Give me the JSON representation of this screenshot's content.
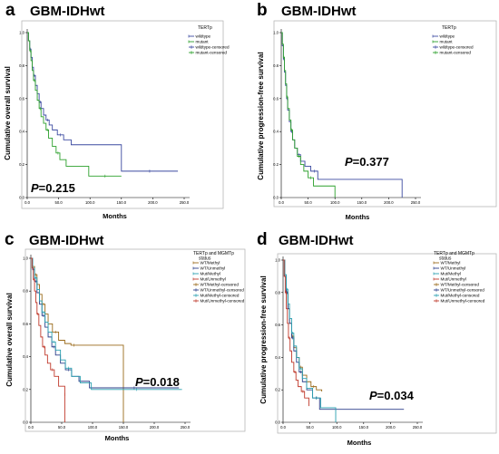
{
  "chart_data": [
    {
      "type": "line",
      "panel": "a",
      "title": "GBM-IDHwt",
      "xlabel": "Months",
      "ylabel": "Cumulative overall survival",
      "xlim": [
        0,
        250
      ],
      "ylim": [
        0,
        1.0
      ],
      "xticks": [
        "0.0",
        "50.0",
        "100.0",
        "150.0",
        "200.0",
        "250.0"
      ],
      "yticks": [
        "0.0",
        "0.2",
        "0.4",
        "0.6",
        "0.8",
        "1.0"
      ],
      "legend_title": "TERTp",
      "legend": [
        "wildtype",
        "mutant",
        "wildtype-censored",
        "mutant-censored"
      ],
      "annotation_p": "P",
      "annotation_value": "=0.215",
      "series": [
        {
          "name": "wildtype",
          "color": "#3b4aa0",
          "x": [
            0,
            2,
            4,
            6,
            8,
            10,
            13,
            16,
            19,
            22,
            26,
            30,
            35,
            40,
            48,
            58,
            70,
            150,
            240
          ],
          "y": [
            1.0,
            0.95,
            0.9,
            0.85,
            0.79,
            0.74,
            0.68,
            0.63,
            0.58,
            0.54,
            0.5,
            0.47,
            0.44,
            0.41,
            0.38,
            0.35,
            0.32,
            0.16,
            0.16
          ]
        },
        {
          "name": "mutant",
          "color": "#2ca02c",
          "x": [
            0,
            2,
            4,
            6,
            8,
            10,
            13,
            16,
            19,
            22,
            26,
            30,
            34,
            40,
            46,
            52,
            62,
            98,
            150
          ],
          "y": [
            1.0,
            0.95,
            0.89,
            0.83,
            0.77,
            0.71,
            0.65,
            0.59,
            0.54,
            0.49,
            0.45,
            0.41,
            0.36,
            0.31,
            0.27,
            0.23,
            0.19,
            0.13,
            0.13
          ]
        }
      ]
    },
    {
      "type": "line",
      "panel": "b",
      "title": "GBM-IDHwt",
      "xlabel": "Months",
      "ylabel": "Cumulative progression-free survival",
      "xlim": [
        0,
        250
      ],
      "ylim": [
        0,
        1.0
      ],
      "xticks": [
        "0.0",
        "50.0",
        "100.0",
        "150.0",
        "200.0",
        "250.0"
      ],
      "yticks": [
        "0.0",
        "0.2",
        "0.4",
        "0.6",
        "0.8",
        "1.0"
      ],
      "legend_title": "TERTp",
      "legend": [
        "wildtype",
        "mutant",
        "wildtype-censored",
        "mutant-censored"
      ],
      "annotation_p": "P",
      "annotation_value": "=0.377",
      "series": [
        {
          "name": "wildtype",
          "color": "#3b4aa0",
          "x": [
            0,
            2,
            4,
            6,
            8,
            10,
            12,
            15,
            18,
            21,
            25,
            30,
            36,
            44,
            55,
            68,
            225
          ],
          "y": [
            1.0,
            0.92,
            0.84,
            0.76,
            0.68,
            0.6,
            0.53,
            0.46,
            0.4,
            0.35,
            0.3,
            0.26,
            0.22,
            0.19,
            0.16,
            0.11,
            0.0
          ]
        },
        {
          "name": "mutant",
          "color": "#2ca02c",
          "x": [
            0,
            2,
            4,
            6,
            8,
            10,
            12,
            15,
            18,
            21,
            25,
            30,
            36,
            42,
            50,
            60,
            100
          ],
          "y": [
            1.0,
            0.93,
            0.85,
            0.77,
            0.69,
            0.61,
            0.54,
            0.47,
            0.41,
            0.35,
            0.3,
            0.25,
            0.2,
            0.16,
            0.12,
            0.07,
            0.0
          ]
        }
      ]
    },
    {
      "type": "line",
      "panel": "c",
      "title": "GBM-IDHwt",
      "xlabel": "Months",
      "ylabel": "Cumulative overall survival",
      "xlim": [
        0,
        250
      ],
      "ylim": [
        0,
        1.0
      ],
      "xticks": [
        "0.0",
        "50.0",
        "100.0",
        "150.0",
        "200.0",
        "250.0"
      ],
      "yticks": [
        "0.0",
        "0.2",
        "0.4",
        "0.6",
        "0.8",
        "1.0"
      ],
      "legend_title": "TERTp and MGMTp status",
      "legend": [
        "WT/Methyl",
        "WT/Unmethyl",
        "Mut/Methyl",
        "Mut/Unmethyl",
        "WT/Methyl-censored",
        "WT/Unmethyl-censored",
        "Mut/Methyl-censored",
        "Mut/Unmethyl-censored"
      ],
      "annotation_p": "P",
      "annotation_value": "=0.018",
      "series": [
        {
          "name": "WT/Methyl",
          "color": "#9a6a1a",
          "x": [
            0,
            3,
            6,
            10,
            14,
            18,
            23,
            28,
            35,
            45,
            55,
            65,
            75,
            150,
            150
          ],
          "y": [
            1.0,
            0.95,
            0.9,
            0.84,
            0.78,
            0.72,
            0.66,
            0.6,
            0.55,
            0.5,
            0.48,
            0.47,
            0.47,
            0.47,
            0.0
          ]
        },
        {
          "name": "WT/Unmethyl",
          "color": "#2b3f8a",
          "x": [
            0,
            3,
            6,
            10,
            14,
            18,
            23,
            28,
            34,
            40,
            48,
            56,
            66,
            78,
            95,
            240
          ],
          "y": [
            1.0,
            0.93,
            0.86,
            0.79,
            0.72,
            0.65,
            0.58,
            0.52,
            0.46,
            0.41,
            0.36,
            0.32,
            0.28,
            0.25,
            0.21,
            0.21
          ]
        },
        {
          "name": "Mut/Methyl",
          "color": "#2aa0b0",
          "x": [
            0,
            3,
            6,
            10,
            14,
            18,
            23,
            28,
            34,
            40,
            48,
            56,
            66,
            80,
            98,
            245
          ],
          "y": [
            1.0,
            0.94,
            0.88,
            0.81,
            0.74,
            0.67,
            0.61,
            0.55,
            0.49,
            0.44,
            0.38,
            0.33,
            0.28,
            0.24,
            0.2,
            0.2
          ]
        },
        {
          "name": "Mut/Unmethyl",
          "color": "#c0392b",
          "x": [
            0,
            2,
            4,
            6,
            8,
            10,
            13,
            16,
            19,
            23,
            27,
            32,
            38,
            45,
            55,
            55
          ],
          "y": [
            1.0,
            0.94,
            0.87,
            0.8,
            0.73,
            0.66,
            0.59,
            0.52,
            0.46,
            0.41,
            0.36,
            0.32,
            0.28,
            0.22,
            0.17,
            0.0
          ]
        }
      ]
    },
    {
      "type": "line",
      "panel": "d",
      "title": "GBM-IDHwt",
      "xlabel": "Months",
      "ylabel": "Cumulative progression-free survival",
      "xlim": [
        0,
        250
      ],
      "ylim": [
        0,
        1.0
      ],
      "xticks": [
        "0.0",
        "50.0",
        "100.0",
        "150.0",
        "200.0",
        "250.0"
      ],
      "yticks": [
        "0.0",
        "0.2",
        "0.4",
        "0.6",
        "0.8",
        "1.0"
      ],
      "legend_title": "TERTp and MGMTp status",
      "legend": [
        "WT/Methyl",
        "WT/Unmethyl",
        "Mut/Methyl",
        "Mut/Unmethyl",
        "WT/Methyl-censored",
        "WT/Unmethyl-censored",
        "Mut/Methyl-censored",
        "Mut/Unmethyl-censored"
      ],
      "annotation_p": "P",
      "annotation_value": "=0.034",
      "series": [
        {
          "name": "WT/Methyl",
          "color": "#9a6a1a",
          "x": [
            0,
            3,
            6,
            9,
            12,
            16,
            20,
            25,
            30,
            36,
            44,
            52,
            62,
            72
          ],
          "y": [
            1.0,
            0.9,
            0.8,
            0.7,
            0.61,
            0.53,
            0.46,
            0.4,
            0.34,
            0.29,
            0.25,
            0.22,
            0.2,
            0.19
          ]
        },
        {
          "name": "WT/Unmethyl",
          "color": "#2b3f8a",
          "x": [
            0,
            3,
            6,
            9,
            12,
            16,
            20,
            25,
            30,
            36,
            44,
            55,
            68,
            225
          ],
          "y": [
            1.0,
            0.9,
            0.8,
            0.7,
            0.61,
            0.52,
            0.44,
            0.37,
            0.31,
            0.25,
            0.2,
            0.15,
            0.08,
            0.08
          ]
        },
        {
          "name": "Mut/Methyl",
          "color": "#2aa0b0",
          "x": [
            0,
            3,
            6,
            9,
            12,
            16,
            20,
            25,
            30,
            36,
            44,
            55,
            70,
            98
          ],
          "y": [
            1.0,
            0.91,
            0.82,
            0.73,
            0.64,
            0.55,
            0.47,
            0.4,
            0.33,
            0.27,
            0.21,
            0.15,
            0.09,
            0.0
          ]
        },
        {
          "name": "Mut/Unmethyl",
          "color": "#c0392b",
          "x": [
            0,
            2,
            4,
            6,
            8,
            10,
            13,
            16,
            20,
            24,
            28,
            34,
            40,
            48
          ],
          "y": [
            1.0,
            0.9,
            0.8,
            0.7,
            0.61,
            0.52,
            0.44,
            0.37,
            0.31,
            0.26,
            0.22,
            0.19,
            0.15,
            0.1
          ]
        }
      ]
    }
  ]
}
